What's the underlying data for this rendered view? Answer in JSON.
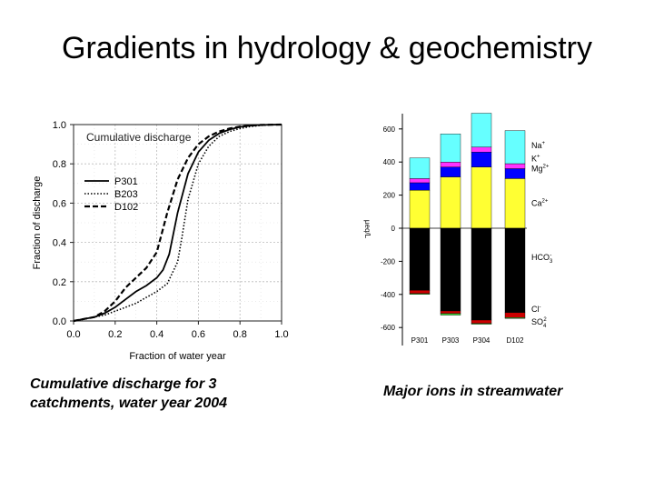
{
  "slide": {
    "title": "Gradients in hydrology & geochemistry",
    "caption_left": "Cumulative discharge for 3 catchments, water year 2004",
    "caption_right": "Major ions in streamwater"
  },
  "chart_data": [
    {
      "type": "line",
      "title": "Cumulative discharge",
      "xlabel": "Fraction of water year",
      "ylabel": "Fraction of discharge",
      "xlim": [
        0,
        1
      ],
      "ylim": [
        0,
        1
      ],
      "xticks": [
        "0.0",
        "0.2",
        "0.4",
        "0.6",
        "0.8",
        "1.0"
      ],
      "yticks": [
        "0.0",
        "0.2",
        "0.4",
        "0.6",
        "0.8",
        "1.0"
      ],
      "grid": true,
      "legend": "left",
      "series": [
        {
          "name": "P301",
          "style": "solid",
          "x": [
            0,
            0.05,
            0.1,
            0.15,
            0.2,
            0.25,
            0.3,
            0.35,
            0.4,
            0.43,
            0.46,
            0.5,
            0.55,
            0.6,
            0.65,
            0.7,
            0.75,
            0.8,
            0.85,
            0.9,
            0.95,
            1.0
          ],
          "y": [
            0,
            0.01,
            0.02,
            0.04,
            0.07,
            0.11,
            0.15,
            0.18,
            0.22,
            0.26,
            0.34,
            0.55,
            0.75,
            0.86,
            0.92,
            0.955,
            0.975,
            0.988,
            0.995,
            0.998,
            0.999,
            1.0
          ]
        },
        {
          "name": "B203",
          "style": "dotted",
          "x": [
            0,
            0.05,
            0.1,
            0.15,
            0.2,
            0.25,
            0.3,
            0.35,
            0.4,
            0.45,
            0.5,
            0.52,
            0.55,
            0.6,
            0.65,
            0.7,
            0.75,
            0.8,
            0.85,
            0.9,
            0.95,
            1.0
          ],
          "y": [
            0,
            0.01,
            0.02,
            0.03,
            0.05,
            0.07,
            0.09,
            0.12,
            0.15,
            0.19,
            0.3,
            0.42,
            0.62,
            0.8,
            0.89,
            0.94,
            0.965,
            0.98,
            0.99,
            0.996,
            0.999,
            1.0
          ]
        },
        {
          "name": "D102",
          "style": "dashed",
          "x": [
            0,
            0.05,
            0.1,
            0.15,
            0.2,
            0.25,
            0.3,
            0.35,
            0.4,
            0.45,
            0.5,
            0.55,
            0.6,
            0.65,
            0.7,
            0.75,
            0.8,
            0.85,
            0.9,
            0.95,
            1.0
          ],
          "y": [
            0,
            0.01,
            0.02,
            0.05,
            0.1,
            0.17,
            0.22,
            0.27,
            0.35,
            0.55,
            0.72,
            0.83,
            0.9,
            0.94,
            0.965,
            0.98,
            0.99,
            0.995,
            0.998,
            0.999,
            1.0
          ]
        }
      ]
    },
    {
      "type": "bar",
      "stacked": true,
      "ylabel": "µeq/L",
      "ylim": [
        -650,
        700
      ],
      "yticks": [
        "600",
        "400",
        "200",
        "0",
        "-200",
        "-400",
        "-600"
      ],
      "categories": [
        "P301",
        "P303",
        "P304",
        "D102"
      ],
      "cation_series": [
        {
          "name": "Ca2+",
          "color": "#ffff33",
          "values": [
            230,
            310,
            370,
            300
          ]
        },
        {
          "name": "Mg2+",
          "color": "#0000ff",
          "values": [
            45,
            60,
            90,
            60
          ]
        },
        {
          "name": "K+",
          "color": "#ff33ff",
          "values": [
            25,
            30,
            30,
            30
          ]
        },
        {
          "name": "Na+",
          "color": "#66ffff",
          "values": [
            125,
            170,
            205,
            200
          ]
        }
      ],
      "anion_series": [
        {
          "name": "HCO3-",
          "color": "#000000",
          "values": [
            -375,
            -500,
            -555,
            -510
          ]
        },
        {
          "name": "Cl-",
          "color": "#cc0000",
          "values": [
            -20,
            -15,
            -20,
            -30
          ]
        },
        {
          "name": "SO42-",
          "color": "#33cc33",
          "values": [
            -5,
            -10,
            -5,
            -5
          ]
        }
      ],
      "ion_labels": [
        {
          "label": "Na",
          "sup": "+",
          "sub": "",
          "value": 500
        },
        {
          "label": "K",
          "sup": "+",
          "sub": "",
          "value": 420
        },
        {
          "label": "Mg",
          "sup": "2+",
          "sub": "",
          "value": 360
        },
        {
          "label": "Ca",
          "sup": "2+",
          "sub": "",
          "value": 150
        },
        {
          "label": "HCO",
          "sup": "-",
          "sub": "3",
          "value": -175
        },
        {
          "label": "Cl",
          "sup": "-",
          "sub": "",
          "value": -490
        },
        {
          "label": "SO",
          "sup": "2",
          "sub": "4",
          "value": -565
        }
      ]
    }
  ]
}
